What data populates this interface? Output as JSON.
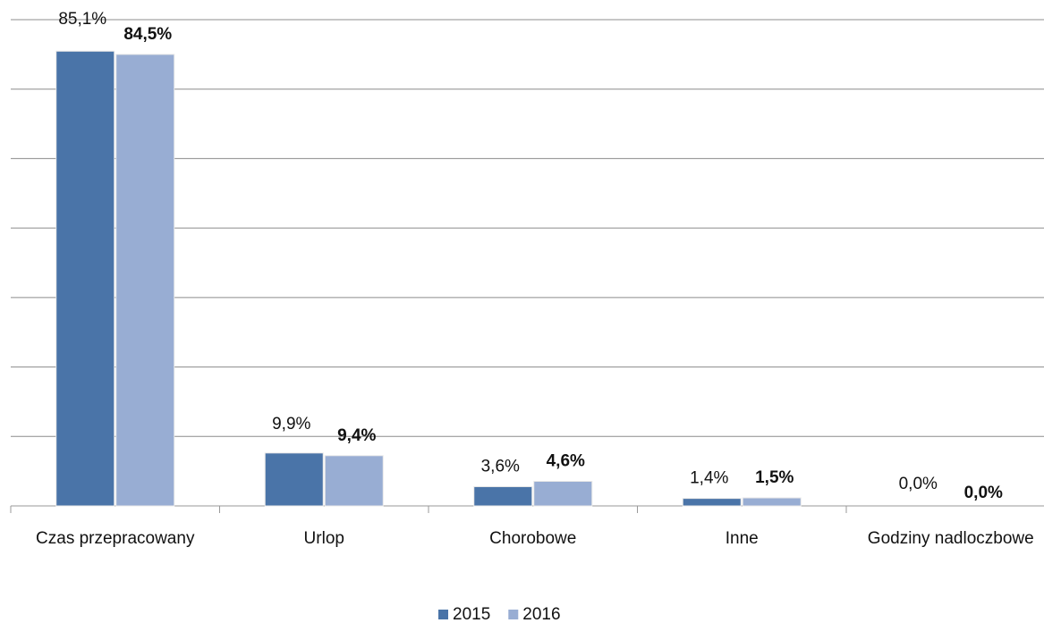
{
  "chart_data": {
    "type": "bar",
    "categories": [
      "Czas przepracowany",
      "Urlop",
      "Chorobowe",
      "Inne",
      "Godziny nadloczbowe"
    ],
    "series": [
      {
        "name": "2015",
        "color": "#4a74a8",
        "values": [
          85.1,
          9.9,
          3.6,
          1.4,
          0.0
        ],
        "value_labels": [
          "85,1%",
          "9,9%",
          "3,6%",
          "1,4%",
          "0,0%"
        ]
      },
      {
        "name": "2016",
        "color": "#98add3",
        "values": [
          84.5,
          9.4,
          4.6,
          1.5,
          0.0
        ],
        "value_labels": [
          "84,5%",
          "9,4%",
          "4,6%",
          "1,5%",
          "0,0%"
        ]
      }
    ],
    "ylim": [
      0,
      91
    ],
    "yticks": [
      0,
      13,
      26,
      39,
      52,
      65,
      78,
      91
    ],
    "grid": true,
    "legend": "bottom"
  }
}
